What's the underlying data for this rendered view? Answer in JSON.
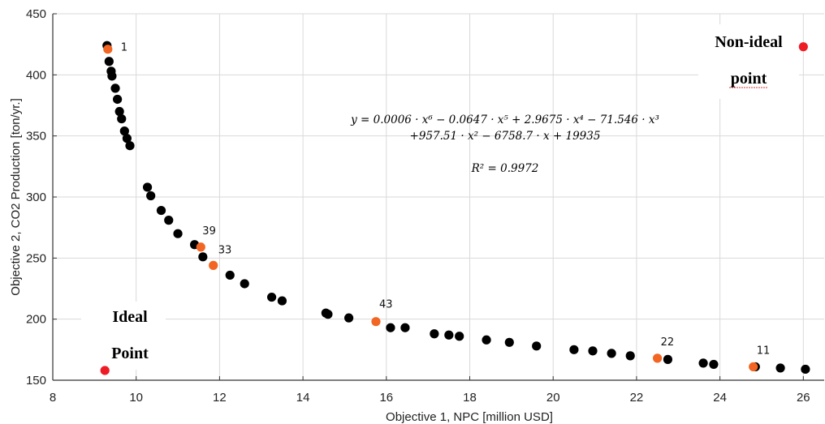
{
  "chart_data": {
    "type": "scatter",
    "xlabel": "Objective 1, NPC [million USD]",
    "ylabel": "Objective 2, CO2 Production [ton/yr.]",
    "xlim": [
      8,
      26.5
    ],
    "ylim": [
      150,
      450
    ],
    "xticks": [
      8,
      10,
      12,
      14,
      16,
      18,
      20,
      22,
      24,
      26
    ],
    "yticks": [
      150,
      200,
      250,
      300,
      350,
      400,
      450
    ],
    "grid": true,
    "colors": {
      "pareto": "#000000",
      "selected": "#f26522",
      "special": "#ee1c25"
    },
    "series": [
      {
        "points": [
          [
            9.3,
            424
          ],
          [
            9.35,
            411
          ],
          [
            9.4,
            403
          ],
          [
            9.42,
            399
          ],
          [
            9.5,
            389
          ],
          [
            9.55,
            380
          ],
          [
            9.6,
            370
          ],
          [
            9.65,
            364
          ],
          [
            9.72,
            354
          ],
          [
            9.78,
            348
          ],
          [
            9.85,
            342
          ],
          [
            10.27,
            308
          ],
          [
            10.35,
            301
          ],
          [
            10.6,
            289
          ],
          [
            10.78,
            281
          ],
          [
            11.0,
            270
          ],
          [
            11.4,
            261
          ],
          [
            11.6,
            251
          ],
          [
            12.25,
            236
          ],
          [
            12.6,
            229
          ],
          [
            13.25,
            218
          ],
          [
            13.5,
            215
          ],
          [
            14.55,
            205
          ],
          [
            14.6,
            204
          ],
          [
            15.1,
            201
          ],
          [
            16.1,
            193
          ],
          [
            16.45,
            193
          ],
          [
            17.15,
            188
          ],
          [
            17.5,
            187
          ],
          [
            17.75,
            186
          ],
          [
            18.4,
            183
          ],
          [
            18.95,
            181
          ],
          [
            19.6,
            178
          ],
          [
            20.5,
            175
          ],
          [
            20.95,
            174
          ],
          [
            21.4,
            172
          ],
          [
            21.85,
            170
          ],
          [
            22.75,
            167
          ],
          [
            23.6,
            164
          ],
          [
            23.85,
            163
          ],
          [
            24.85,
            161
          ],
          [
            25.45,
            160
          ],
          [
            26.05,
            159
          ]
        ]
      }
    ],
    "selected_points": [
      {
        "label": "1",
        "x": 9.32,
        "y": 421
      },
      {
        "label": "39",
        "x": 11.55,
        "y": 259
      },
      {
        "label": "33",
        "x": 11.85,
        "y": 244
      },
      {
        "label": "43",
        "x": 15.75,
        "y": 198
      },
      {
        "label": "22",
        "x": 22.5,
        "y": 168
      },
      {
        "label": "11",
        "x": 24.8,
        "y": 161
      }
    ],
    "special_points": [
      {
        "id": "ideal",
        "line1": "Ideal",
        "line2": "Point",
        "x": 9.25,
        "y": 158
      },
      {
        "id": "nonideal",
        "line1": "Non-ideal",
        "line2": "point",
        "x": 26.0,
        "y": 423
      }
    ],
    "equation": {
      "line1": "y = 0.0006 · x⁶ − 0.0647 · x⁵ + 2.9675 · x⁴ − 71.546 · x³",
      "line2": "+957.51 · x² − 6758.7 · x + 19935",
      "r2": "R² = 0.9972"
    }
  }
}
